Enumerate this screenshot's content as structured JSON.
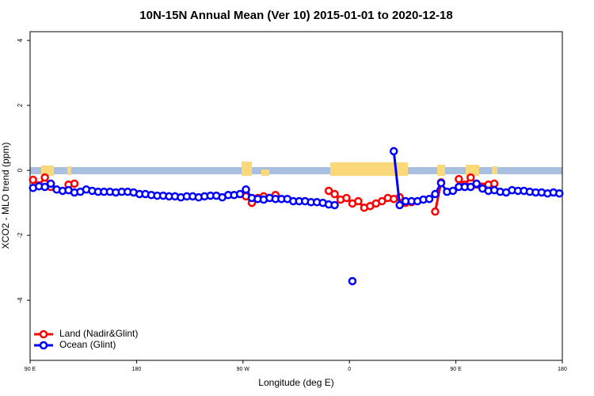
{
  "chart_data": {
    "type": "line",
    "title": "10N-15N Annual Mean (Ver 10)   2015-01-01 to 2020-12-18",
    "x_label": "Longitude (deg E)",
    "y_label": "XCO2 - MLO trend (ppm)",
    "xlim": [
      90,
      540
    ],
    "xticks": [
      {
        "value": 90,
        "label": "90 E"
      },
      180,
      {
        "value": 270,
        "label": "90 W"
      },
      {
        "value": 360,
        "label": "0"
      },
      {
        "value": 450,
        "label": "90 E"
      },
      {
        "value": 540,
        "label": "180"
      }
    ],
    "ylim": [
      -5.85,
      4.27
    ],
    "yticks": [
      -4,
      -2,
      0,
      2,
      4
    ],
    "grid": false,
    "legend": "bottom left",
    "x": [
      92.5,
      97.5,
      102.5,
      107.5,
      112.5,
      117.5,
      122.5,
      127.5,
      132.5,
      137.5,
      142.5,
      147.5,
      152.5,
      157.5,
      162.5,
      167.5,
      172.5,
      177.5,
      182.5,
      187.5,
      192.5,
      197.5,
      202.5,
      207.5,
      212.5,
      217.5,
      222.5,
      227.5,
      232.5,
      237.5,
      242.5,
      247.5,
      252.5,
      257.5,
      262.5,
      267.5,
      272.5,
      277.5,
      282.5,
      287.5,
      292.5,
      297.5,
      302.5,
      307.5,
      312.5,
      317.5,
      322.5,
      327.5,
      332.5,
      337.5,
      342.5,
      347.5,
      352.5,
      357.5,
      362.5,
      367.5,
      372.5,
      377.5,
      382.5,
      387.5,
      392.5,
      397.5,
      402.5,
      407.5,
      412.5,
      417.5,
      422.5,
      427.5,
      432.5,
      437.5,
      442.5,
      447.5,
      452.5,
      457.5,
      462.5,
      467.5,
      472.5,
      477.5,
      482.5,
      487.5,
      492.5,
      497.5,
      502.5,
      507.5,
      512.5,
      517.5,
      522.5,
      527.5,
      532.5,
      537.5
    ],
    "series": [
      {
        "name": "Land (Nadir&Glint)",
        "color": "#ff0000",
        "values": [
          -0.29,
          -0.46,
          -0.22,
          -0.51,
          null,
          null,
          -0.44,
          -0.41,
          null,
          null,
          null,
          null,
          null,
          null,
          null,
          null,
          null,
          null,
          null,
          null,
          null,
          null,
          null,
          null,
          null,
          null,
          null,
          null,
          null,
          null,
          null,
          null,
          null,
          null,
          null,
          null,
          -0.8,
          -1.0,
          -0.85,
          -0.8,
          -0.85,
          -0.76,
          null,
          null,
          null,
          null,
          null,
          null,
          null,
          null,
          -0.63,
          -0.73,
          -0.9,
          -0.85,
          -1.02,
          -0.95,
          -1.15,
          -1.1,
          -1.02,
          -0.95,
          -0.85,
          -0.88,
          -0.83,
          -1.0,
          -0.98,
          null,
          null,
          null,
          -1.27,
          -0.37,
          null,
          null,
          -0.27,
          -0.44,
          -0.22,
          -0.44,
          -0.5,
          -0.44,
          -0.41,
          null,
          null,
          null,
          null,
          null,
          null,
          null,
          null,
          null,
          null,
          null
        ]
      },
      {
        "name": "Ocean (Glint)",
        "color": "#0000ff",
        "values": [
          -0.54,
          -0.49,
          -0.51,
          -0.41,
          -0.59,
          -0.63,
          -0.61,
          -0.68,
          -0.66,
          -0.59,
          -0.63,
          -0.66,
          -0.66,
          -0.66,
          -0.68,
          -0.66,
          -0.66,
          -0.68,
          -0.73,
          -0.73,
          -0.76,
          -0.78,
          -0.78,
          -0.8,
          -0.8,
          -0.83,
          -0.8,
          -0.8,
          -0.83,
          -0.8,
          -0.78,
          -0.78,
          -0.83,
          -0.76,
          -0.76,
          -0.73,
          -0.59,
          -0.85,
          -0.88,
          -0.9,
          -0.85,
          -0.88,
          -0.88,
          -0.88,
          -0.95,
          -0.95,
          -0.95,
          -0.98,
          -0.98,
          -1.0,
          -1.05,
          -1.07,
          null,
          null,
          -3.41,
          null,
          null,
          null,
          null,
          null,
          null,
          0.59,
          -1.07,
          -0.95,
          -0.95,
          -0.95,
          -0.9,
          -0.88,
          -0.73,
          -0.39,
          -0.66,
          -0.63,
          -0.51,
          -0.51,
          -0.51,
          -0.41,
          -0.56,
          -0.63,
          -0.61,
          -0.66,
          -0.68,
          -0.61,
          -0.63,
          -0.63,
          -0.66,
          -0.68,
          -0.68,
          -0.71,
          -0.68,
          -0.71
        ]
      }
    ]
  }
}
